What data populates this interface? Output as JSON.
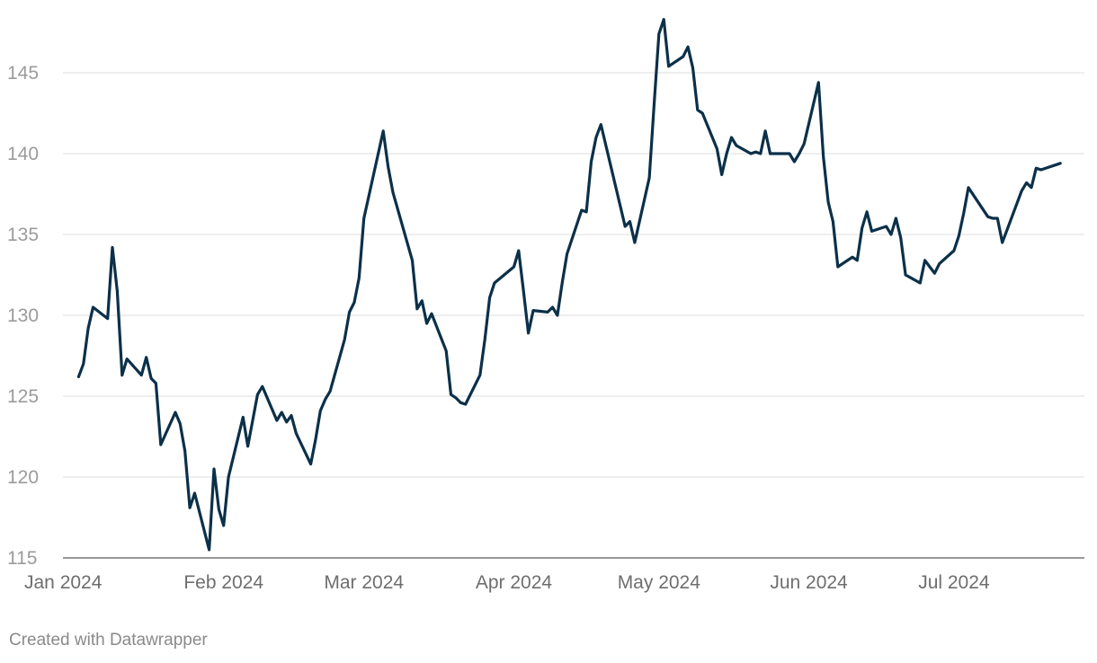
{
  "chart_data": {
    "type": "line",
    "title": "",
    "xlabel": "",
    "ylabel": "",
    "xlim": [
      "2024-01-01",
      "2024-07-25"
    ],
    "ylim": [
      115,
      148
    ],
    "yticks": [
      115,
      120,
      125,
      130,
      135,
      140,
      145
    ],
    "xticks": [
      {
        "date": "2024-01-01",
        "label": "Jan 2024"
      },
      {
        "date": "2024-02-01",
        "label": "Feb 2024"
      },
      {
        "date": "2024-03-01",
        "label": "Mar 2024"
      },
      {
        "date": "2024-04-01",
        "label": "Apr 2024"
      },
      {
        "date": "2024-05-01",
        "label": "May 2024"
      },
      {
        "date": "2024-06-01",
        "label": "Jun 2024"
      },
      {
        "date": "2024-07-01",
        "label": "Jul 2024"
      }
    ],
    "grid": true,
    "line_color": "#0b3049",
    "series": [
      {
        "points": [
          [
            "2024-01-02",
            126.2
          ],
          [
            "2024-01-03",
            127.0
          ],
          [
            "2024-01-04",
            129.2
          ],
          [
            "2024-01-05",
            130.5
          ],
          [
            "2024-01-08",
            129.8
          ],
          [
            "2024-01-09",
            134.2
          ],
          [
            "2024-01-10",
            131.5
          ],
          [
            "2024-01-11",
            126.3
          ],
          [
            "2024-01-12",
            127.3
          ],
          [
            "2024-01-15",
            126.3
          ],
          [
            "2024-01-16",
            127.4
          ],
          [
            "2024-01-17",
            126.1
          ],
          [
            "2024-01-18",
            125.8
          ],
          [
            "2024-01-19",
            122.0
          ],
          [
            "2024-01-22",
            124.0
          ],
          [
            "2024-01-23",
            123.3
          ],
          [
            "2024-01-24",
            121.6
          ],
          [
            "2024-01-25",
            118.1
          ],
          [
            "2024-01-26",
            119.0
          ],
          [
            "2024-01-29",
            115.5
          ],
          [
            "2024-01-30",
            120.5
          ],
          [
            "2024-01-31",
            118.0
          ],
          [
            "2024-02-01",
            117.0
          ],
          [
            "2024-02-02",
            120.0
          ],
          [
            "2024-02-05",
            123.7
          ],
          [
            "2024-02-06",
            121.9
          ],
          [
            "2024-02-07",
            123.5
          ],
          [
            "2024-02-08",
            125.1
          ],
          [
            "2024-02-09",
            125.6
          ],
          [
            "2024-02-12",
            123.5
          ],
          [
            "2024-02-13",
            124.0
          ],
          [
            "2024-02-14",
            123.4
          ],
          [
            "2024-02-15",
            123.8
          ],
          [
            "2024-02-16",
            122.7
          ],
          [
            "2024-02-19",
            120.8
          ],
          [
            "2024-02-20",
            122.3
          ],
          [
            "2024-02-21",
            124.1
          ],
          [
            "2024-02-22",
            124.8
          ],
          [
            "2024-02-23",
            125.3
          ],
          [
            "2024-02-26",
            128.5
          ],
          [
            "2024-02-27",
            130.2
          ],
          [
            "2024-02-28",
            130.8
          ],
          [
            "2024-02-29",
            132.3
          ],
          [
            "2024-03-01",
            136.0
          ],
          [
            "2024-03-05",
            141.4
          ],
          [
            "2024-03-06",
            139.2
          ],
          [
            "2024-03-07",
            137.6
          ],
          [
            "2024-03-11",
            133.4
          ],
          [
            "2024-03-12",
            130.4
          ],
          [
            "2024-03-13",
            130.9
          ],
          [
            "2024-03-14",
            129.5
          ],
          [
            "2024-03-15",
            130.1
          ],
          [
            "2024-03-18",
            127.8
          ],
          [
            "2024-03-19",
            125.1
          ],
          [
            "2024-03-20",
            124.9
          ],
          [
            "2024-03-21",
            124.6
          ],
          [
            "2024-03-22",
            124.5
          ],
          [
            "2024-03-25",
            126.3
          ],
          [
            "2024-03-26",
            128.5
          ],
          [
            "2024-03-27",
            131.1
          ],
          [
            "2024-03-28",
            132.0
          ],
          [
            "2024-04-01",
            133.0
          ],
          [
            "2024-04-02",
            134.0
          ],
          [
            "2024-04-03",
            131.5
          ],
          [
            "2024-04-04",
            128.9
          ],
          [
            "2024-04-05",
            130.3
          ],
          [
            "2024-04-08",
            130.2
          ],
          [
            "2024-04-09",
            130.5
          ],
          [
            "2024-04-10",
            130.0
          ],
          [
            "2024-04-11",
            132.0
          ],
          [
            "2024-04-12",
            133.8
          ],
          [
            "2024-04-15",
            136.5
          ],
          [
            "2024-04-16",
            136.4
          ],
          [
            "2024-04-17",
            139.5
          ],
          [
            "2024-04-18",
            141.0
          ],
          [
            "2024-04-19",
            141.8
          ],
          [
            "2024-04-24",
            135.5
          ],
          [
            "2024-04-25",
            135.8
          ],
          [
            "2024-04-26",
            134.5
          ],
          [
            "2024-04-29",
            138.5
          ],
          [
            "2024-04-30",
            143.0
          ],
          [
            "2024-05-01",
            147.4
          ],
          [
            "2024-05-02",
            148.3
          ],
          [
            "2024-05-03",
            145.4
          ],
          [
            "2024-05-06",
            146.0
          ],
          [
            "2024-05-07",
            146.6
          ],
          [
            "2024-05-08",
            145.3
          ],
          [
            "2024-05-09",
            142.7
          ],
          [
            "2024-05-10",
            142.5
          ],
          [
            "2024-05-13",
            140.3
          ],
          [
            "2024-05-14",
            138.7
          ],
          [
            "2024-05-15",
            140.0
          ],
          [
            "2024-05-16",
            141.0
          ],
          [
            "2024-05-17",
            140.5
          ],
          [
            "2024-05-20",
            140.0
          ],
          [
            "2024-05-21",
            140.1
          ],
          [
            "2024-05-22",
            140.0
          ],
          [
            "2024-05-23",
            141.4
          ],
          [
            "2024-05-24",
            140.0
          ],
          [
            "2024-05-28",
            140.0
          ],
          [
            "2024-05-29",
            139.5
          ],
          [
            "2024-05-30",
            140.0
          ],
          [
            "2024-05-31",
            140.6
          ],
          [
            "2024-06-03",
            144.4
          ],
          [
            "2024-06-04",
            139.8
          ],
          [
            "2024-06-05",
            137.0
          ],
          [
            "2024-06-06",
            135.8
          ],
          [
            "2024-06-07",
            133.0
          ],
          [
            "2024-06-10",
            133.6
          ],
          [
            "2024-06-11",
            133.4
          ],
          [
            "2024-06-12",
            135.4
          ],
          [
            "2024-06-13",
            136.4
          ],
          [
            "2024-06-14",
            135.2
          ],
          [
            "2024-06-17",
            135.5
          ],
          [
            "2024-06-18",
            135.0
          ],
          [
            "2024-06-19",
            136.0
          ],
          [
            "2024-06-20",
            134.8
          ],
          [
            "2024-06-21",
            132.5
          ],
          [
            "2024-06-24",
            132.0
          ],
          [
            "2024-06-25",
            133.4
          ],
          [
            "2024-06-26",
            133.0
          ],
          [
            "2024-06-27",
            132.6
          ],
          [
            "2024-06-28",
            133.2
          ],
          [
            "2024-07-01",
            134.0
          ],
          [
            "2024-07-02",
            134.9
          ],
          [
            "2024-07-03",
            136.3
          ],
          [
            "2024-07-04",
            137.9
          ],
          [
            "2024-07-08",
            136.1
          ],
          [
            "2024-07-09",
            136.0
          ],
          [
            "2024-07-10",
            136.0
          ],
          [
            "2024-07-11",
            134.5
          ],
          [
            "2024-07-15",
            137.7
          ],
          [
            "2024-07-16",
            138.2
          ],
          [
            "2024-07-17",
            137.9
          ],
          [
            "2024-07-18",
            139.1
          ],
          [
            "2024-07-19",
            139.0
          ],
          [
            "2024-07-23",
            139.4
          ]
        ]
      }
    ]
  },
  "footer": {
    "credit": "Created with Datawrapper"
  }
}
